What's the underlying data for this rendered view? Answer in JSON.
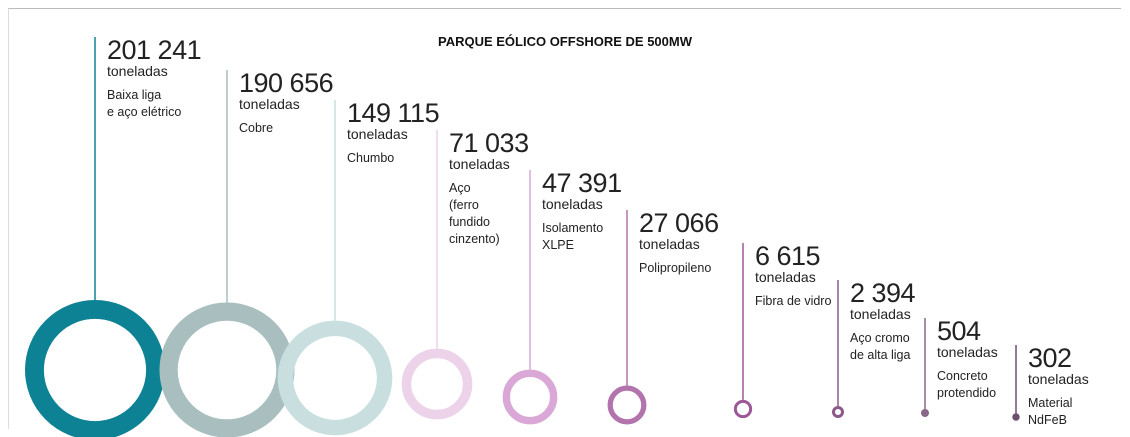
{
  "chart_data": {
    "type": "ring",
    "title": "PARQUE EÓLICO OFFSHORE DE 500MW",
    "unit": "toneladas",
    "categories": [
      "Baixa liga\ne aço elétrico",
      "Cobre",
      "Chumbo",
      "Aço\n(ferro\nfundido\ncinzento)",
      "Isolamento\nXLPE",
      "Polipropileno",
      "Fibra de vidro",
      "Aço cromo\nde alta liga",
      "Concreto\nprotendido",
      "Material\nNdFeB"
    ],
    "values": [
      201241,
      190656,
      149115,
      71033,
      47391,
      27066,
      6615,
      2394,
      504,
      302
    ],
    "value_labels": [
      "201 241",
      "190 656",
      "149 115",
      "71 033",
      "47 391",
      "27 066",
      "6 615",
      "2 394",
      "504",
      "302"
    ],
    "colors": [
      "#0e8295",
      "#a9bfbf",
      "#c9dfdf",
      "#ecd3ea",
      "#d9a8d6",
      "#b374ae",
      "#9a5896",
      "#8b5a8a",
      "#8a6688",
      "#6e4f70"
    ]
  }
}
